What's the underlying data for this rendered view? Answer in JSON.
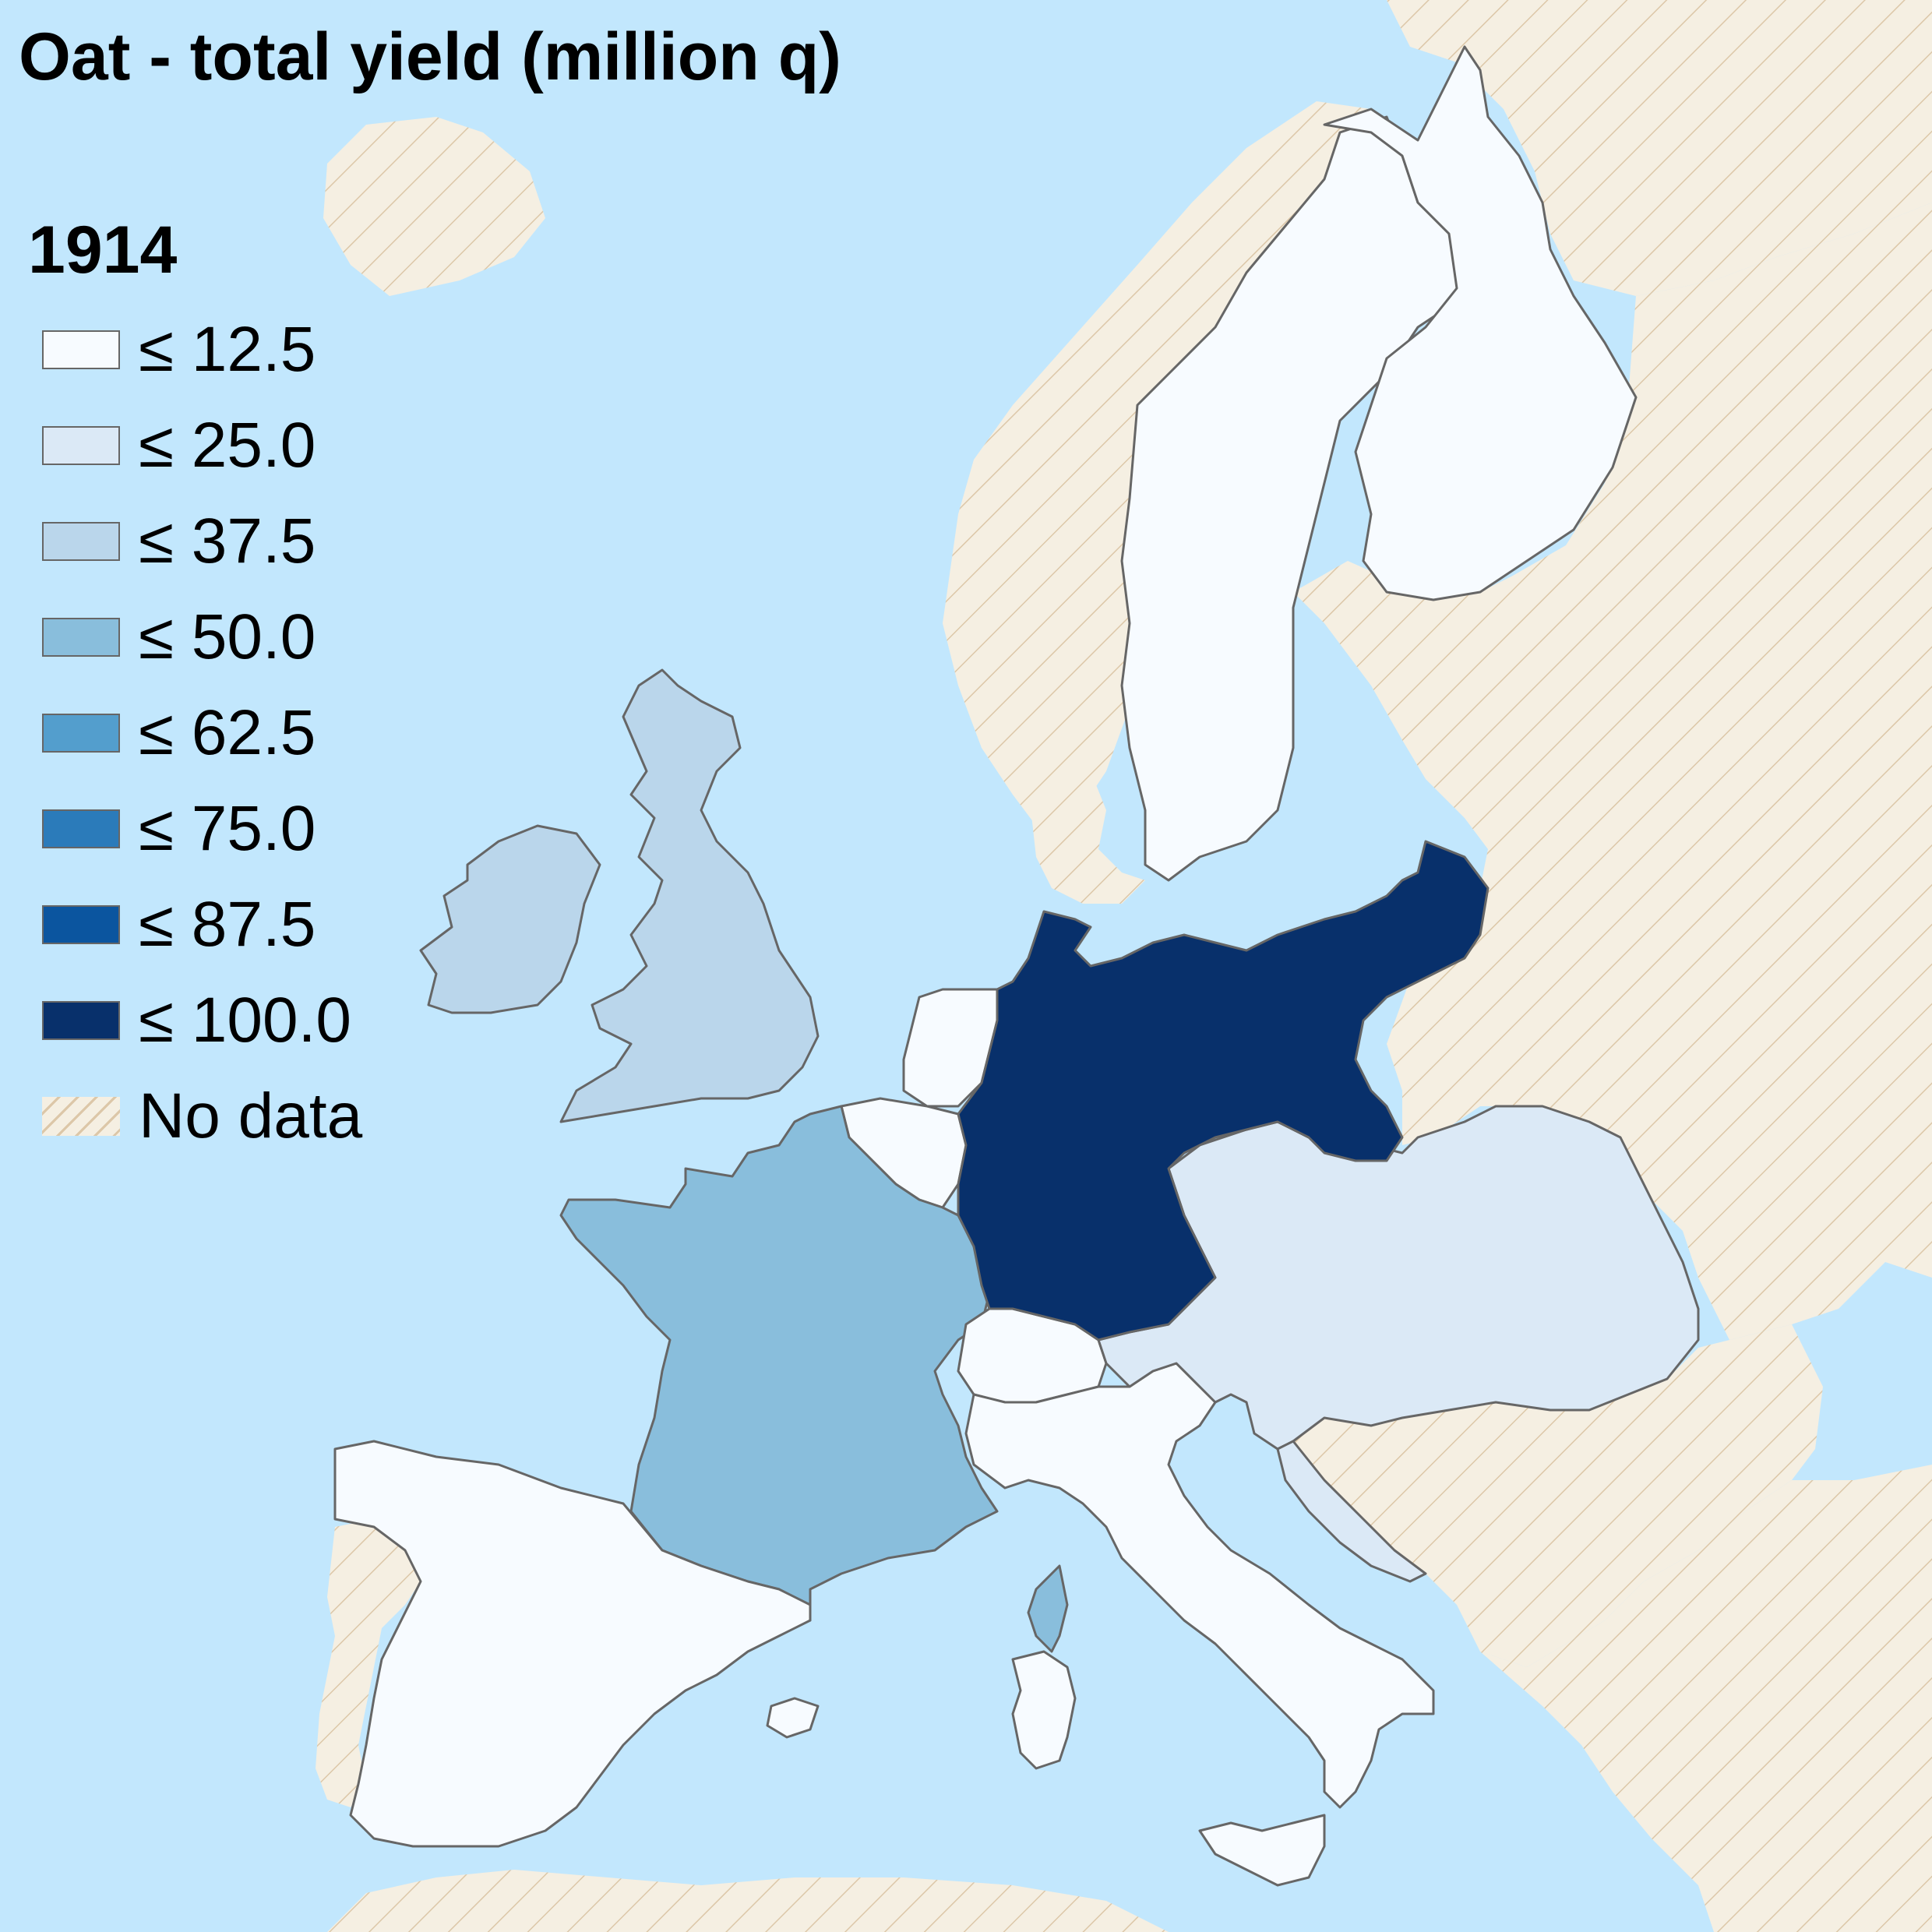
{
  "title": "Oat - total yield (million q)",
  "year": "1914",
  "colors": {
    "sea": "#c2e7fd",
    "land_no_data": "#f5efe2",
    "hatch": "#dcc7a8",
    "border": "#666666"
  },
  "legend": [
    {
      "label": "≤ 12.5",
      "color": "#f7fbff"
    },
    {
      "label": "≤ 25.0",
      "color": "#dbe9f6"
    },
    {
      "label": "≤ 37.5",
      "color": "#bad6eb"
    },
    {
      "label": "≤ 50.0",
      "color": "#89bedc"
    },
    {
      "label": "≤ 62.5",
      "color": "#539ecd"
    },
    {
      "label": "≤ 75.0",
      "color": "#2b7bba"
    },
    {
      "label": "≤ 87.5",
      "color": "#0b559f"
    },
    {
      "label": "≤ 100.0",
      "color": "#08306b"
    }
  ],
  "no_data_label": "No data",
  "regions": [
    {
      "name": "German Empire",
      "class": "≤ 100.0"
    },
    {
      "name": "France",
      "class": "≤ 50.0"
    },
    {
      "name": "Corsica",
      "class": "≤ 50.0"
    },
    {
      "name": "United Kingdom",
      "class": "≤ 37.5"
    },
    {
      "name": "Ireland",
      "class": "≤ 37.5"
    },
    {
      "name": "Austria-Hungary",
      "class": "≤ 25.0"
    },
    {
      "name": "Sweden",
      "class": "≤ 12.5"
    },
    {
      "name": "Finland",
      "class": "≤ 12.5"
    },
    {
      "name": "Spain",
      "class": "≤ 12.5"
    },
    {
      "name": "Italy",
      "class": "≤ 12.5"
    },
    {
      "name": "Switzerland",
      "class": "≤ 12.5"
    },
    {
      "name": "Netherlands",
      "class": "≤ 12.5"
    },
    {
      "name": "Belgium",
      "class": "≤ 12.5"
    }
  ]
}
